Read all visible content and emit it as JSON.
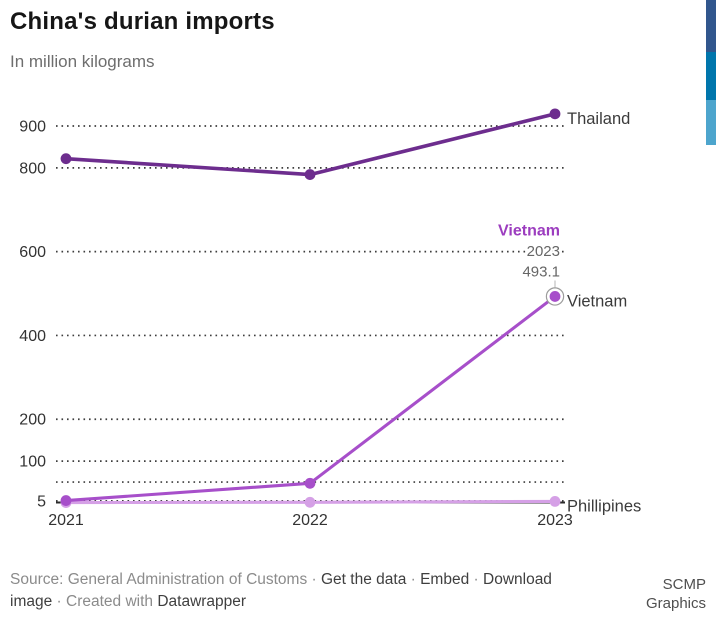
{
  "header": {
    "title": "China's durian imports",
    "subtitle": "In million kilograms"
  },
  "brand": {
    "line1": "SCMP",
    "line2": "Graphics",
    "bar_colors": [
      "#31568d",
      "#0076ac",
      "#4da5cd"
    ]
  },
  "chart_data": {
    "type": "line",
    "title": "China's durian imports",
    "units": "In million kilograms",
    "categories": [
      "2021",
      "2022",
      "2023"
    ],
    "series": [
      {
        "name": "Thailand",
        "color": "#6d2d8e",
        "values": [
          822,
          784,
          929
        ]
      },
      {
        "name": "Vietnam",
        "color": "#a74fca",
        "values": [
          5.8,
          47,
          493.1
        ]
      },
      {
        "name": "Phillipines",
        "color": "#d5a0e6",
        "values": [
          1,
          1.7,
          3.8
        ]
      }
    ],
    "y_ticks": [
      {
        "value": 900,
        "label": "900"
      },
      {
        "value": 800,
        "label": "800"
      },
      {
        "value": 600,
        "label": "600"
      },
      {
        "value": 400,
        "label": "400"
      },
      {
        "value": 200,
        "label": "200"
      },
      {
        "value": 100,
        "label": "100"
      },
      {
        "value": 50,
        "label": ""
      },
      {
        "value": 5,
        "label": "5"
      }
    ],
    "ylim": [
      0,
      960
    ],
    "grid": "dotted horizontal",
    "legend": "end-of-line labels",
    "annotation": {
      "series": "Vietnam",
      "year": "2023",
      "value": "493.1",
      "color": "#9c3dbf"
    }
  },
  "footer": {
    "line1": {
      "source": "Source: General Administration of Customs",
      "sep1": " · ",
      "get_data": "Get the data",
      "sep2": " · ",
      "embed": "Embed",
      "sep3": " · ",
      "download_word1": "Download"
    },
    "line2": {
      "download_word2": "image",
      "sep": " · ",
      "created_with": "Created with ",
      "datawrapper": "Datawrapper"
    }
  }
}
